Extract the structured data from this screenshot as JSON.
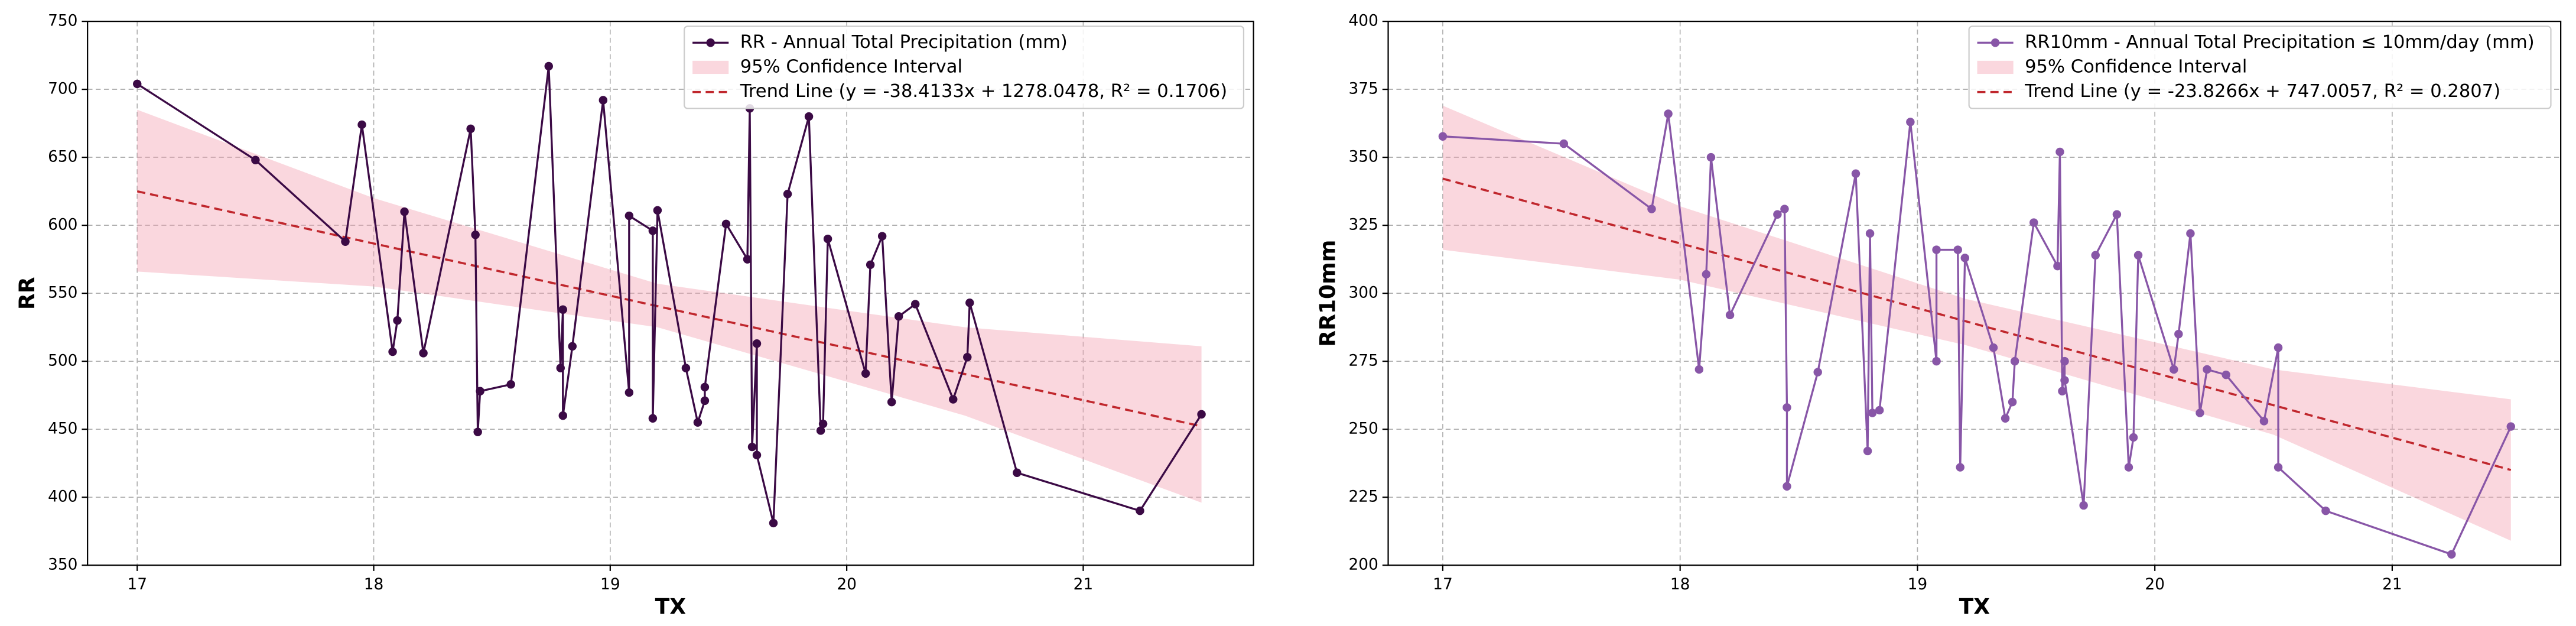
{
  "chart_data": [
    {
      "type": "line",
      "x": [
        17.0,
        17.5,
        17.88,
        17.95,
        18.08,
        18.1,
        18.13,
        18.21,
        18.41,
        18.43,
        18.44,
        18.45,
        18.58,
        18.74,
        18.79,
        18.8,
        18.8,
        18.84,
        18.97,
        19.08,
        19.08,
        19.18,
        19.18,
        19.2,
        19.32,
        19.37,
        19.4,
        19.4,
        19.49,
        19.58,
        19.59,
        19.6,
        19.62,
        19.62,
        19.69,
        19.75,
        19.84,
        19.89,
        19.9,
        19.92,
        20.08,
        20.1,
        20.15,
        20.19,
        20.22,
        20.29,
        20.45,
        20.51,
        20.52,
        20.72,
        21.24,
        21.5
      ],
      "series": [
        {
          "name": "RR - Annual Total Precipitation (mm)",
          "color": "#3b0a45",
          "values": [
            704,
            648,
            588,
            674,
            507,
            530,
            610,
            506,
            671,
            593,
            448,
            478,
            483,
            717,
            495,
            538,
            460,
            511,
            692,
            477,
            607,
            596,
            458,
            611,
            495,
            455,
            471,
            481,
            601,
            575,
            686,
            437,
            513,
            431,
            381,
            623,
            680,
            449,
            454,
            590,
            491,
            571,
            592,
            470,
            533,
            542,
            472,
            503,
            543,
            418,
            390,
            461
          ]
        }
      ],
      "ci": {
        "name": "95% Confidence Interval",
        "color": "#f4a6b5",
        "x": [
          17,
          18,
          19.2,
          20.5,
          21.5
        ],
        "lower": [
          566,
          555,
          525,
          460,
          396
        ],
        "upper": [
          685,
          620,
          557,
          525,
          511
        ]
      },
      "trend": {
        "name": "Trend Line (y = -38.4133x + 1278.0478, R² = 0.1706)",
        "color": "#c0272d",
        "x": [
          17,
          21.5
        ],
        "values": [
          625.02,
          452.17
        ]
      },
      "xlabel": "TX",
      "ylabel": "RR",
      "xlim": [
        16.79,
        21.72
      ],
      "ylim": [
        350,
        750
      ],
      "xticks": [
        17,
        18,
        19,
        20,
        21
      ],
      "yticks": [
        350,
        400,
        450,
        500,
        550,
        600,
        650,
        700,
        750
      ],
      "grid": true,
      "legend": "upper right"
    },
    {
      "type": "line",
      "x": [
        17.0,
        17.51,
        17.88,
        17.95,
        18.08,
        18.11,
        18.13,
        18.21,
        18.41,
        18.44,
        18.45,
        18.45,
        18.58,
        18.74,
        18.79,
        18.8,
        18.81,
        18.84,
        18.97,
        19.08,
        19.08,
        19.17,
        19.18,
        19.2,
        19.32,
        19.37,
        19.4,
        19.41,
        19.49,
        19.59,
        19.6,
        19.61,
        19.62,
        19.62,
        19.7,
        19.75,
        19.84,
        19.89,
        19.91,
        19.93,
        20.08,
        20.1,
        20.15,
        20.19,
        20.22,
        20.3,
        20.46,
        20.52,
        20.52,
        20.72,
        21.25,
        21.5
      ],
      "series": [
        {
          "name": "RR10mm - Annual Total Precipitation ≤ 10mm/day (mm)",
          "color": "#8856a7",
          "values": [
            357.7,
            355,
            331,
            366,
            272,
            307,
            350,
            292,
            329,
            331,
            258,
            229,
            271,
            344,
            242,
            322,
            256,
            257,
            363,
            275,
            316,
            316,
            236,
            313,
            280,
            254,
            260,
            275,
            326,
            310,
            352,
            264,
            275,
            268,
            222,
            314,
            329,
            236,
            247,
            314,
            272,
            285,
            322,
            256,
            272,
            270,
            253,
            280,
            236,
            220,
            204,
            251
          ]
        }
      ],
      "ci": {
        "name": "95% Confidence Interval",
        "color": "#f4a6b5",
        "x": [
          17,
          18,
          19.2,
          20.5,
          21.5
        ],
        "lower": [
          316,
          305,
          281,
          248,
          209
        ],
        "upper": [
          369,
          332,
          298,
          272,
          261
        ]
      },
      "trend": {
        "name": "Trend Line (y = -23.8266x + 747.0057, R² = 0.2807)",
        "color": "#c0272d",
        "x": [
          17,
          21.5
        ],
        "values": [
          342.16,
          235.02
        ]
      },
      "xlabel": "TX",
      "ylabel": "RR10mm",
      "xlim": [
        16.77,
        21.71
      ],
      "ylim": [
        200,
        400
      ],
      "xticks": [
        17,
        18,
        19,
        20,
        21
      ],
      "yticks": [
        200,
        225,
        250,
        275,
        300,
        325,
        350,
        375,
        400
      ],
      "grid": true,
      "legend": "upper right"
    }
  ]
}
